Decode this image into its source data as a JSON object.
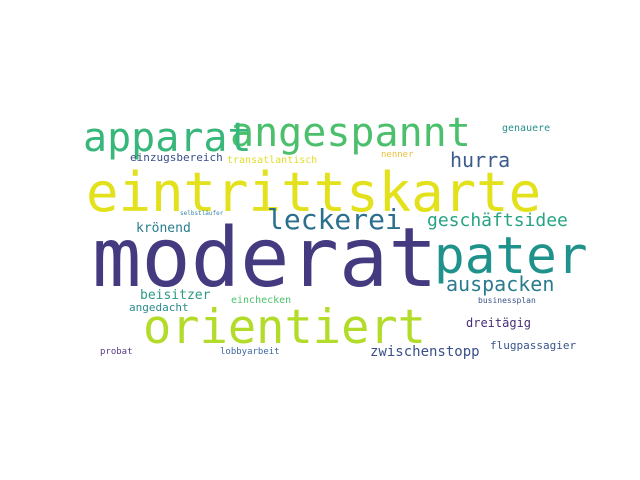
{
  "words": [
    {
      "key": "moderat",
      "text": "moderat",
      "color": "#433a80"
    },
    {
      "key": "eintrittskarte",
      "text": "eintrittskarte",
      "color": "#e2e11b"
    },
    {
      "key": "orientiert",
      "text": "orientiert",
      "color": "#b3dc2a"
    },
    {
      "key": "pater",
      "text": "pater",
      "color": "#1f928b"
    },
    {
      "key": "angespannt",
      "text": "angespannt",
      "color": "#4bbf6c"
    },
    {
      "key": "apparat",
      "text": "apparat",
      "color": "#38b77a"
    },
    {
      "key": "leckerei",
      "text": "leckerei",
      "color": "#2b6f8e"
    },
    {
      "key": "hurra",
      "text": "hurra",
      "color": "#3c5b8b"
    },
    {
      "key": "geschaeftsidee",
      "text": "geschäftsidee",
      "color": "#27a483"
    },
    {
      "key": "auspacken",
      "text": "auspacken",
      "color": "#2a7c8e"
    },
    {
      "key": "kroenend",
      "text": "krönend",
      "color": "#2a7e8e"
    },
    {
      "key": "beisitzer",
      "text": "beisitzer",
      "color": "#2e9a84"
    },
    {
      "key": "einchecken",
      "text": "einchecken",
      "color": "#4cc26b"
    },
    {
      "key": "angedacht",
      "text": "angedacht",
      "color": "#2c8a8c"
    },
    {
      "key": "zwischenstopp",
      "text": "zwischenstopp",
      "color": "#3a4f8a"
    },
    {
      "key": "dreitaegig",
      "text": "dreitägig",
      "color": "#462e75"
    },
    {
      "key": "flugpassagier",
      "text": "flugpassagier",
      "color": "#39548b"
    },
    {
      "key": "businessplan",
      "text": "businessplan",
      "color": "#3c5589"
    },
    {
      "key": "lobbyarbeit",
      "text": "lobbyarbeit",
      "color": "#3f67a0"
    },
    {
      "key": "probat",
      "text": "probat",
      "color": "#5a3a8a"
    },
    {
      "key": "einzugsbereich",
      "text": "einzugsbereich",
      "color": "#3b4f8a"
    },
    {
      "key": "transatlantisch",
      "text": "transatlantisch",
      "color": "#e0dc2b"
    },
    {
      "key": "nenner",
      "text": "nenner",
      "color": "#e6c13a"
    },
    {
      "key": "genauere",
      "text": "genauere",
      "color": "#2a9088"
    },
    {
      "key": "selbstlaeufer",
      "text": "selbstläufer",
      "color": "#3a85a8"
    }
  ]
}
